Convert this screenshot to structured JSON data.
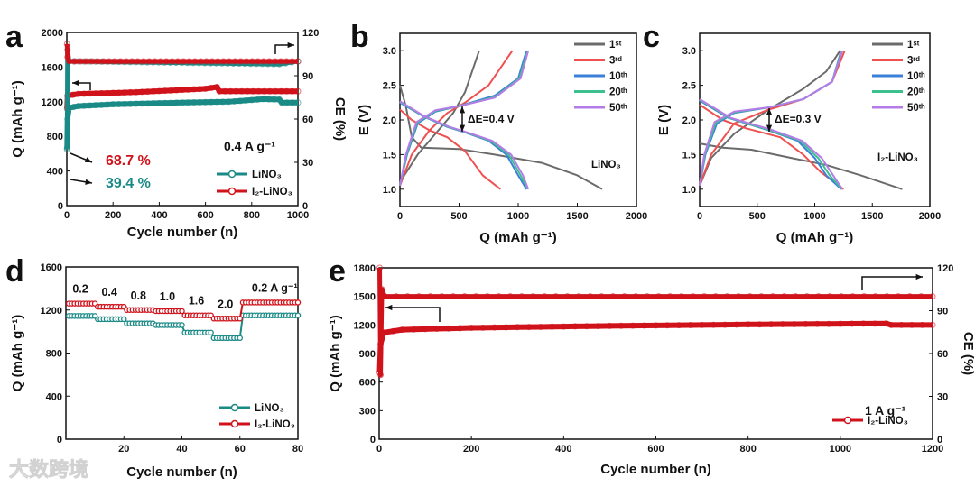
{
  "colors": {
    "red": "#d0121b",
    "teal": "#1a8a86",
    "gray": "#6b6b6b",
    "red3": "#ef5050",
    "blue": "#3a7fd8",
    "green": "#3cc08e",
    "purple": "#b57be8",
    "axis": "#111111"
  },
  "watermark": "大数跨境",
  "chart_data": [
    {
      "id": "a",
      "panel_label": "a",
      "type": "line",
      "xlabel": "Cycle number (n)",
      "ylabel": "Q (mAh g⁻¹)",
      "y2label": "CE (%)",
      "xlim": [
        0,
        1000
      ],
      "ylim": [
        0,
        2000
      ],
      "y2lim": [
        0,
        120
      ],
      "xticks": [
        "0",
        "200",
        "400",
        "600",
        "800",
        "1000"
      ],
      "yticks": [
        "0",
        "400",
        "800",
        "1200",
        "1600",
        "2000"
      ],
      "y2ticks": [
        "0",
        "30",
        "60",
        "90",
        "120"
      ],
      "annotations": {
        "red_pct": "68.7 %",
        "teal_pct": "39.4 %",
        "rate": "0.4 A g⁻¹"
      },
      "series": [
        {
          "name": "LiNO₃",
          "color": "teal",
          "axis": "y",
          "points": [
            [
              1,
              650
            ],
            [
              3,
              1000
            ],
            [
              10,
              1130
            ],
            [
              50,
              1150
            ],
            [
              200,
              1170
            ],
            [
              500,
              1190
            ],
            [
              700,
              1200
            ],
            [
              850,
              1230
            ],
            [
              920,
              1225
            ],
            [
              930,
              1190
            ],
            [
              1000,
              1190
            ]
          ]
        },
        {
          "name": "I₂-LiNO₃",
          "color": "red",
          "axis": "y",
          "points": [
            [
              1,
              1120
            ],
            [
              3,
              1270
            ],
            [
              50,
              1290
            ],
            [
              300,
              1310
            ],
            [
              600,
              1350
            ],
            [
              650,
              1370
            ],
            [
              660,
              1320
            ],
            [
              1000,
              1320
            ]
          ]
        },
        {
          "name": "LiNO₃ CE",
          "color": "teal",
          "axis": "y2",
          "legend": false,
          "points": [
            [
              1,
              40
            ],
            [
              3,
              108
            ],
            [
              10,
              100
            ],
            [
              50,
              100
            ],
            [
              920,
              98
            ],
            [
              1000,
              100
            ]
          ]
        },
        {
          "name": "I₂-LiNO₃ CE",
          "color": "red",
          "axis": "y2",
          "legend": false,
          "points": [
            [
              1,
              112
            ],
            [
              3,
              103
            ],
            [
              10,
              100
            ],
            [
              1000,
              100
            ]
          ]
        }
      ]
    },
    {
      "id": "b",
      "panel_label": "b",
      "type": "line",
      "xlabel": "Q (mAh g⁻¹)",
      "ylabel": "E (V)",
      "xlim": [
        0,
        2000
      ],
      "ylim": [
        0.75,
        3.25
      ],
      "xticks": [
        "0",
        "500",
        "1000",
        "1500",
        "2000"
      ],
      "yticks": [
        "1.0",
        "1.5",
        "2.0",
        "2.5",
        "3.0"
      ],
      "annotations": {
        "delta": "ΔE=0.4 V",
        "electrolyte": "LiNO₃"
      },
      "series": [
        {
          "name": "1ˢᵗ",
          "color": "gray",
          "discharge": [
            [
              0,
              2.5
            ],
            [
              50,
              2.2
            ],
            [
              100,
              1.75
            ],
            [
              180,
              1.6
            ],
            [
              500,
              1.58
            ],
            [
              800,
              1.5
            ],
            [
              1200,
              1.38
            ],
            [
              1500,
              1.2
            ],
            [
              1710,
              1.0
            ]
          ],
          "charge": [
            [
              0,
              1.1
            ],
            [
              150,
              1.5
            ],
            [
              300,
              1.8
            ],
            [
              450,
              2.1
            ],
            [
              550,
              2.4
            ],
            [
              670,
              3.0
            ]
          ]
        },
        {
          "name": "3ʳᵈ",
          "color": "red3",
          "discharge": [
            [
              0,
              2.15
            ],
            [
              100,
              2.0
            ],
            [
              250,
              1.85
            ],
            [
              400,
              1.75
            ],
            [
              550,
              1.55
            ],
            [
              700,
              1.2
            ],
            [
              850,
              1.0
            ]
          ],
          "charge": [
            [
              0,
              1.05
            ],
            [
              100,
              1.5
            ],
            [
              250,
              1.85
            ],
            [
              400,
              2.1
            ],
            [
              550,
              2.25
            ],
            [
              750,
              2.5
            ],
            [
              950,
              3.0
            ]
          ]
        },
        {
          "name": "10ᵗʰ",
          "color": "blue",
          "discharge": [
            [
              0,
              2.25
            ],
            [
              200,
              2.05
            ],
            [
              400,
              1.9
            ],
            [
              550,
              1.82
            ],
            [
              750,
              1.7
            ],
            [
              900,
              1.5
            ],
            [
              1000,
              1.2
            ],
            [
              1070,
              1.0
            ]
          ],
          "charge": [
            [
              0,
              1.05
            ],
            [
              60,
              1.5
            ],
            [
              150,
              1.95
            ],
            [
              300,
              2.12
            ],
            [
              500,
              2.2
            ],
            [
              800,
              2.35
            ],
            [
              1000,
              2.6
            ],
            [
              1070,
              3.0
            ]
          ]
        },
        {
          "name": "20ᵗʰ",
          "color": "green",
          "discharge": [
            [
              0,
              2.26
            ],
            [
              205,
              2.05
            ],
            [
              410,
              1.9
            ],
            [
              560,
              1.82
            ],
            [
              765,
              1.7
            ],
            [
              920,
              1.5
            ],
            [
              1020,
              1.2
            ],
            [
              1080,
              1.0
            ]
          ],
          "charge": [
            [
              0,
              1.05
            ],
            [
              55,
              1.5
            ],
            [
              145,
              1.96
            ],
            [
              300,
              2.13
            ],
            [
              500,
              2.2
            ],
            [
              800,
              2.33
            ],
            [
              1010,
              2.6
            ],
            [
              1080,
              3.0
            ]
          ]
        },
        {
          "name": "50ᵗʰ",
          "color": "purple",
          "discharge": [
            [
              0,
              2.27
            ],
            [
              210,
              2.05
            ],
            [
              420,
              1.9
            ],
            [
              570,
              1.82
            ],
            [
              780,
              1.7
            ],
            [
              940,
              1.5
            ],
            [
              1040,
              1.2
            ],
            [
              1085,
              1.0
            ]
          ],
          "charge": [
            [
              0,
              1.05
            ],
            [
              50,
              1.5
            ],
            [
              140,
              1.97
            ],
            [
              300,
              2.14
            ],
            [
              500,
              2.2
            ],
            [
              800,
              2.32
            ],
            [
              1020,
              2.6
            ],
            [
              1085,
              3.0
            ]
          ]
        }
      ]
    },
    {
      "id": "c",
      "panel_label": "c",
      "type": "line",
      "xlabel": "Q (mAh g⁻¹)",
      "ylabel": "E (V)",
      "xlim": [
        0,
        2000
      ],
      "ylim": [
        0.75,
        3.25
      ],
      "xticks": [
        "0",
        "500",
        "1000",
        "1500",
        "2000"
      ],
      "yticks": [
        "1.0",
        "1.5",
        "2.0",
        "2.5",
        "3.0"
      ],
      "annotations": {
        "delta": "ΔE=0.3 V",
        "electrolyte": "I₂-LiNO₃"
      },
      "series": [
        {
          "name": "1ˢᵗ",
          "color": "gray",
          "discharge": [
            [
              0,
              1.66
            ],
            [
              200,
              1.6
            ],
            [
              450,
              1.57
            ],
            [
              800,
              1.45
            ],
            [
              1100,
              1.35
            ],
            [
              1400,
              1.2
            ],
            [
              1760,
              1.0
            ]
          ],
          "charge": [
            [
              0,
              1.05
            ],
            [
              100,
              1.45
            ],
            [
              300,
              1.8
            ],
            [
              600,
              2.15
            ],
            [
              900,
              2.45
            ],
            [
              1100,
              2.7
            ],
            [
              1220,
              3.0
            ]
          ]
        },
        {
          "name": "3ʳᵈ",
          "color": "red3",
          "discharge": [
            [
              0,
              2.22
            ],
            [
              200,
              2.0
            ],
            [
              400,
              1.88
            ],
            [
              700,
              1.75
            ],
            [
              900,
              1.5
            ],
            [
              1050,
              1.25
            ],
            [
              1250,
              1.0
            ]
          ],
          "charge": [
            [
              0,
              1.05
            ],
            [
              100,
              1.5
            ],
            [
              300,
              1.95
            ],
            [
              600,
              2.15
            ],
            [
              900,
              2.3
            ],
            [
              1150,
              2.55
            ],
            [
              1260,
              3.0
            ]
          ]
        },
        {
          "name": "10ᵗʰ",
          "color": "blue",
          "discharge": [
            [
              0,
              2.28
            ],
            [
              250,
              2.03
            ],
            [
              600,
              1.85
            ],
            [
              850,
              1.7
            ],
            [
              1000,
              1.45
            ],
            [
              1100,
              1.2
            ],
            [
              1230,
              1.0
            ]
          ],
          "charge": [
            [
              0,
              1.05
            ],
            [
              50,
              1.5
            ],
            [
              150,
              1.95
            ],
            [
              300,
              2.1
            ],
            [
              600,
              2.18
            ],
            [
              900,
              2.3
            ],
            [
              1150,
              2.55
            ],
            [
              1230,
              3.0
            ]
          ]
        },
        {
          "name": "20ᵗʰ",
          "color": "green",
          "discharge": [
            [
              0,
              2.29
            ],
            [
              260,
              2.03
            ],
            [
              610,
              1.85
            ],
            [
              870,
              1.7
            ],
            [
              1030,
              1.45
            ],
            [
              1130,
              1.2
            ],
            [
              1235,
              1.0
            ]
          ],
          "charge": [
            [
              0,
              1.05
            ],
            [
              45,
              1.5
            ],
            [
              140,
              1.96
            ],
            [
              300,
              2.11
            ],
            [
              600,
              2.18
            ],
            [
              900,
              2.3
            ],
            [
              1150,
              2.55
            ],
            [
              1235,
              3.0
            ]
          ]
        },
        {
          "name": "50ᵗʰ",
          "color": "purple",
          "discharge": [
            [
              0,
              2.3
            ],
            [
              270,
              2.03
            ],
            [
              620,
              1.86
            ],
            [
              890,
              1.7
            ],
            [
              1060,
              1.45
            ],
            [
              1160,
              1.2
            ],
            [
              1240,
              1.0
            ]
          ],
          "charge": [
            [
              0,
              1.05
            ],
            [
              40,
              1.5
            ],
            [
              130,
              1.97
            ],
            [
              300,
              2.12
            ],
            [
              600,
              2.18
            ],
            [
              900,
              2.3
            ],
            [
              1150,
              2.55
            ],
            [
              1240,
              3.0
            ]
          ]
        }
      ]
    },
    {
      "id": "d",
      "panel_label": "d",
      "type": "line",
      "xlabel": "Cycle number (n)",
      "ylabel": "Q (mAh g⁻¹)",
      "xlim": [
        0,
        80
      ],
      "ylim": [
        0,
        1600
      ],
      "xticks": [
        "20",
        "40",
        "60",
        "80"
      ],
      "yticks": [
        "0",
        "400",
        "800",
        "1200",
        "1600"
      ],
      "rates": [
        "0.2",
        "0.4",
        "0.8",
        "1.0",
        "1.6",
        "2.0",
        "0.2 A g⁻¹"
      ],
      "series": [
        {
          "name": "LiNO₃",
          "color": "teal",
          "steps": [
            1145,
            1115,
            1075,
            1060,
            990,
            940,
            1150
          ]
        },
        {
          "name": "I₂-LiNO₃",
          "color": "red",
          "steps": [
            1260,
            1230,
            1200,
            1190,
            1150,
            1120,
            1270
          ]
        }
      ]
    },
    {
      "id": "e",
      "panel_label": "e",
      "type": "line",
      "xlabel": "Cycle number (n)",
      "ylabel": "Q (mAh g⁻¹)",
      "y2label": "CE (%)",
      "xlim": [
        0,
        1200
      ],
      "ylim": [
        0,
        1800
      ],
      "y2lim": [
        0,
        120
      ],
      "xticks": [
        "0",
        "200",
        "400",
        "600",
        "800",
        "1000",
        "1200"
      ],
      "yticks": [
        "0",
        "300",
        "600",
        "900",
        "1200",
        "1500",
        "1800"
      ],
      "y2ticks": [
        "0",
        "30",
        "60",
        "90",
        "120"
      ],
      "annotations": {
        "rate": "1 A g⁻¹"
      },
      "series": [
        {
          "name": "I₂-LiNO₃",
          "color": "red",
          "axis": "y",
          "points": [
            [
              1,
              700
            ],
            [
              3,
              1000
            ],
            [
              10,
              1120
            ],
            [
              50,
              1150
            ],
            [
              200,
              1170
            ],
            [
              500,
              1190
            ],
            [
              800,
              1205
            ],
            [
              1100,
              1215
            ],
            [
              1110,
              1200
            ],
            [
              1200,
              1200
            ]
          ]
        },
        {
          "name": "I₂-LiNO₃ CE",
          "color": "red",
          "axis": "y2",
          "legend": false,
          "points": [
            [
              1,
              120
            ],
            [
              3,
              45
            ],
            [
              6,
              105
            ],
            [
              12,
              100
            ],
            [
              1200,
              100
            ]
          ]
        }
      ]
    }
  ]
}
